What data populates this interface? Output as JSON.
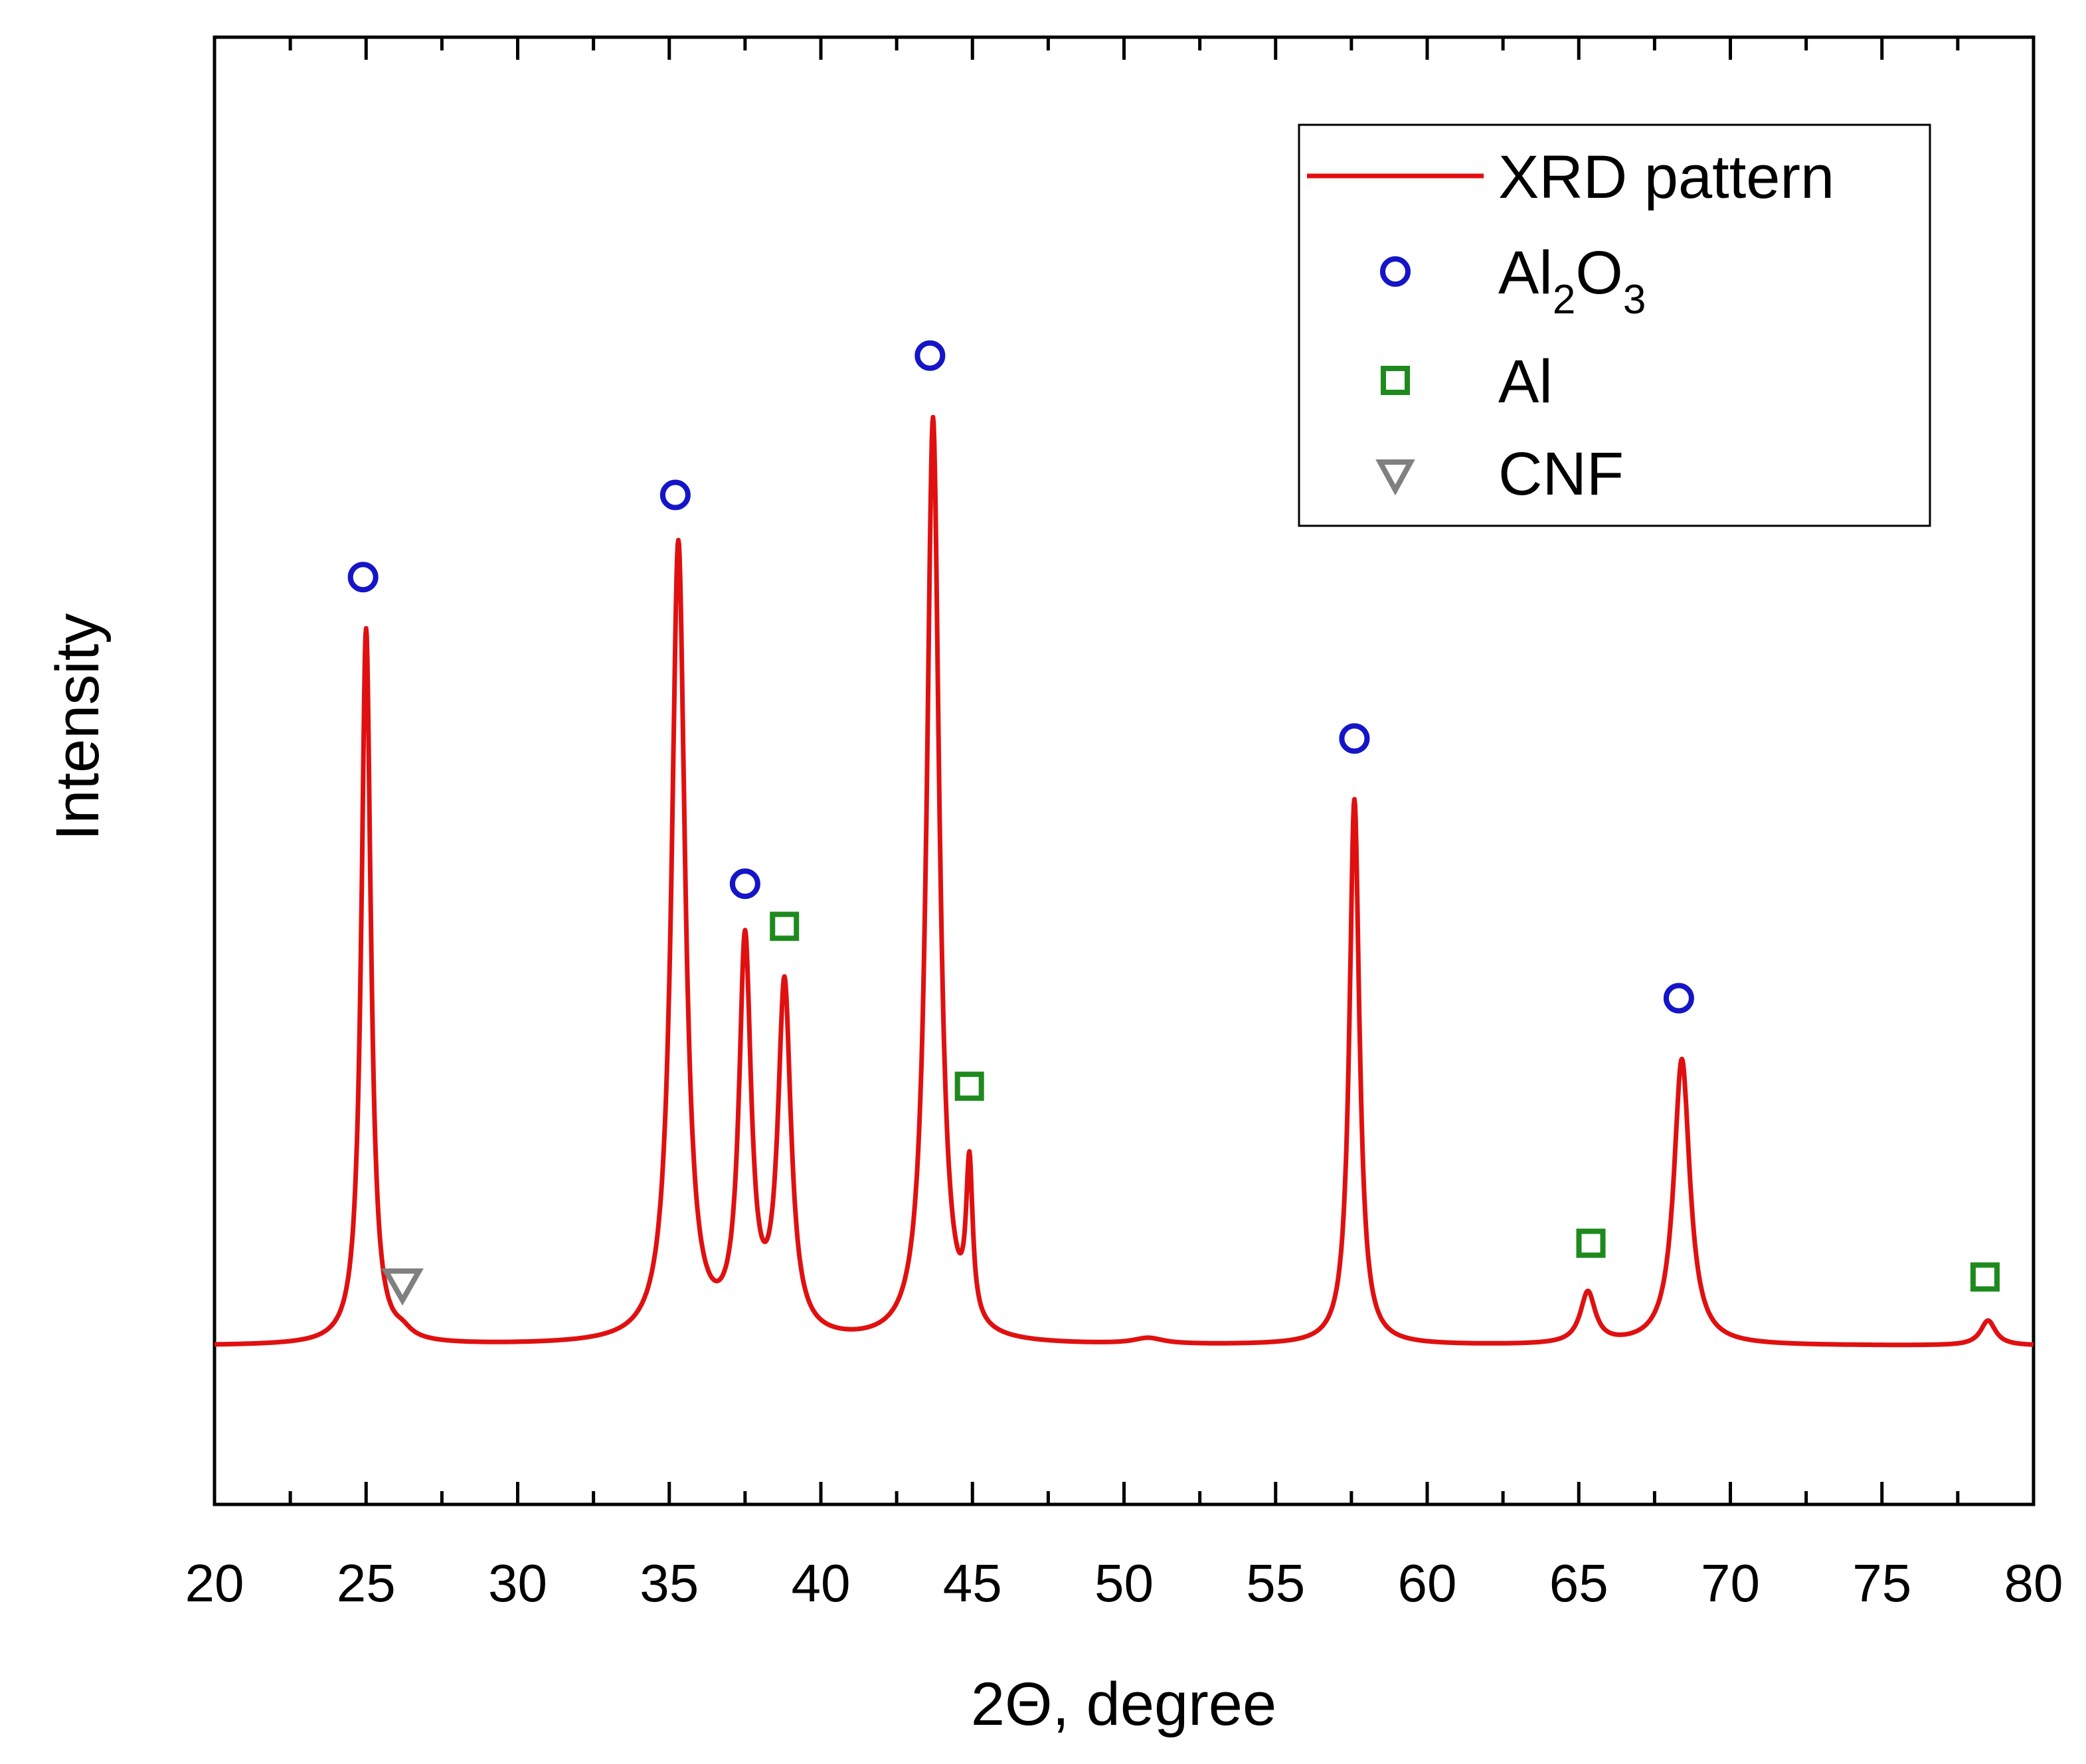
{
  "chart_data": {
    "type": "line",
    "title": "",
    "xlabel": "2Θ, degree",
    "ylabel": "Intensity",
    "xlim": [
      20,
      80
    ],
    "ylim": [
      0,
      100
    ],
    "x_ticks": [
      20,
      25,
      30,
      35,
      40,
      45,
      50,
      55,
      60,
      65,
      70,
      75,
      80
    ],
    "x_tick_labels": [
      "20",
      "25",
      "30",
      "35",
      "40",
      "45",
      "50",
      "55",
      "60",
      "65",
      "70",
      "75",
      "80"
    ],
    "y_ticks_labeled": false,
    "legend_position": "top-right",
    "colors": {
      "pattern": "#e01010",
      "al2o3": "#1515c8",
      "al": "#1e8a1e",
      "cnf": "#808080",
      "axis": "#000000"
    },
    "baseline": 10.8,
    "series": [
      {
        "name": "XRD pattern",
        "style": "line",
        "peaks": [
          {
            "center": 25.0,
            "height": 48.8,
            "width": 0.19
          },
          {
            "center": 26.2,
            "height": 0.5,
            "width": 0.35
          },
          {
            "center": 35.3,
            "height": 54.4,
            "width": 0.27
          },
          {
            "center": 37.5,
            "height": 26.5,
            "width": 0.24
          },
          {
            "center": 38.8,
            "height": 23.8,
            "width": 0.26
          },
          {
            "center": 43.7,
            "height": 63.0,
            "width": 0.25
          },
          {
            "center": 44.9,
            "height": 10.5,
            "width": 0.13
          },
          {
            "center": 50.8,
            "height": 0.4,
            "width": 0.6
          },
          {
            "center": 57.6,
            "height": 37.2,
            "width": 0.2
          },
          {
            "center": 65.3,
            "height": 3.5,
            "width": 0.3
          },
          {
            "center": 68.4,
            "height": 19.5,
            "width": 0.32
          },
          {
            "center": 78.5,
            "height": 1.7,
            "width": 0.3
          }
        ]
      },
      {
        "name": "Al₂O₃",
        "style": "circle-marker",
        "points": [
          {
            "x": 24.9,
            "y": 63.2
          },
          {
            "x": 35.2,
            "y": 68.8
          },
          {
            "x": 37.5,
            "y": 42.3
          },
          {
            "x": 43.6,
            "y": 78.3
          },
          {
            "x": 57.6,
            "y": 52.2
          },
          {
            "x": 68.3,
            "y": 34.5
          }
        ]
      },
      {
        "name": "Al",
        "style": "square-marker",
        "points": [
          {
            "x": 38.8,
            "y": 39.4
          },
          {
            "x": 44.9,
            "y": 28.5
          },
          {
            "x": 65.4,
            "y": 17.8
          },
          {
            "x": 78.4,
            "y": 15.5
          }
        ]
      },
      {
        "name": "CNF",
        "style": "triangle-down-marker",
        "points": [
          {
            "x": 26.2,
            "y": 15.0
          }
        ]
      }
    ],
    "legend": {
      "entries": [
        {
          "label": "XRD pattern",
          "symbol": "line"
        },
        {
          "label_parts": [
            "Al",
            "2",
            "O",
            "3"
          ],
          "symbol": "circle"
        },
        {
          "label": "Al",
          "symbol": "square"
        },
        {
          "label": "CNF",
          "symbol": "triangle-down"
        }
      ]
    }
  }
}
